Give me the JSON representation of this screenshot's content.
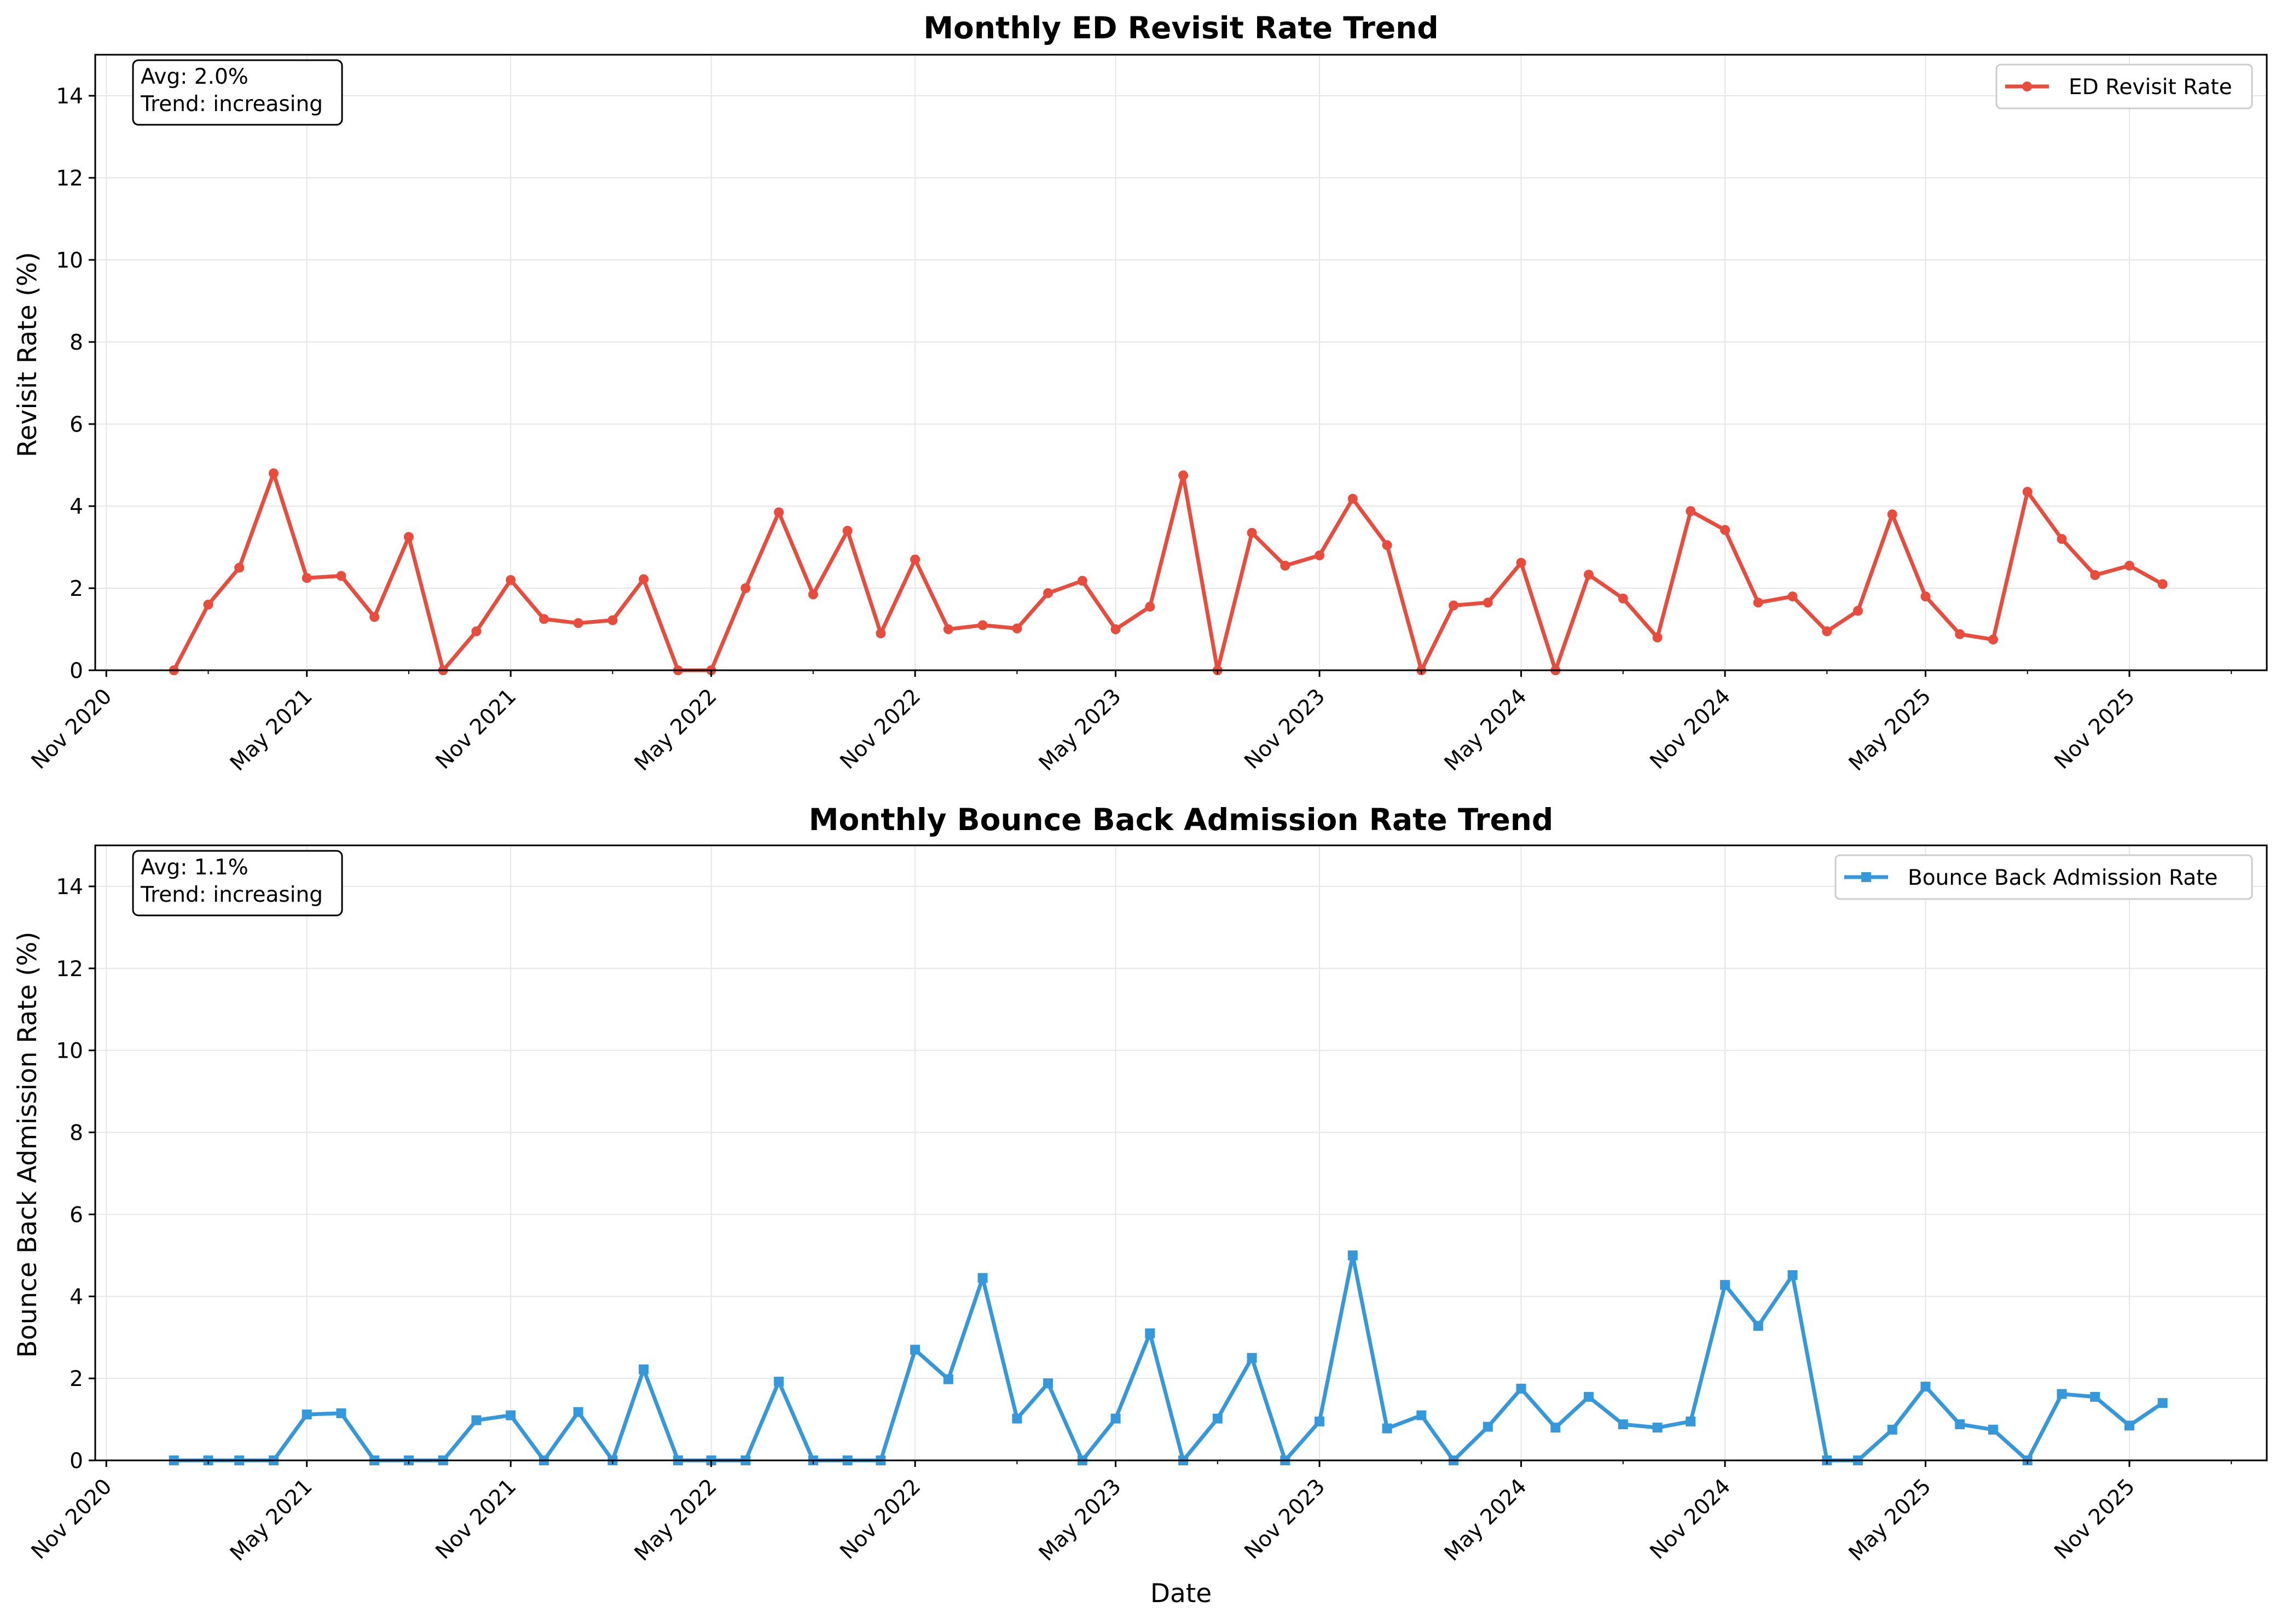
{
  "chart_data": [
    {
      "type": "line",
      "title": "Monthly ED Revisit Rate Trend",
      "xlabel": "",
      "ylabel": "Revisit Rate (%)",
      "ylim": [
        0,
        15
      ],
      "yticks": [
        0,
        2,
        4,
        6,
        8,
        10,
        12,
        14
      ],
      "xlim": [
        "2020-10-22",
        "2026-03-05"
      ],
      "xticks": [
        {
          "date": "2020-11-01",
          "label": "Nov 2020"
        },
        {
          "date": "2021-05-01",
          "label": "May 2021"
        },
        {
          "date": "2021-11-01",
          "label": "Nov 2021"
        },
        {
          "date": "2022-05-01",
          "label": "May 2022"
        },
        {
          "date": "2022-11-01",
          "label": "Nov 2022"
        },
        {
          "date": "2023-05-01",
          "label": "May 2023"
        },
        {
          "date": "2023-11-01",
          "label": "Nov 2023"
        },
        {
          "date": "2024-05-01",
          "label": "May 2024"
        },
        {
          "date": "2024-11-01",
          "label": "Nov 2024"
        },
        {
          "date": "2025-05-01",
          "label": "May 2025"
        },
        {
          "date": "2025-11-01",
          "label": "Nov 2025"
        }
      ],
      "grid": true,
      "legend_position": "top-right",
      "annotation": [
        "Avg: 2.0%",
        "Trend: increasing"
      ],
      "series": [
        {
          "name": "ED Revisit Rate",
          "color": "#e74c3c",
          "marker": "circle",
          "x": [
            "2021-01-01",
            "2021-02-01",
            "2021-03-01",
            "2021-04-01",
            "2021-05-01",
            "2021-06-01",
            "2021-07-01",
            "2021-08-01",
            "2021-09-01",
            "2021-10-01",
            "2021-11-01",
            "2021-12-01",
            "2022-01-01",
            "2022-02-01",
            "2022-03-01",
            "2022-04-01",
            "2022-05-01",
            "2022-06-01",
            "2022-07-01",
            "2022-08-01",
            "2022-09-01",
            "2022-10-01",
            "2022-11-01",
            "2022-12-01",
            "2023-01-01",
            "2023-02-01",
            "2023-03-01",
            "2023-04-01",
            "2023-05-01",
            "2023-06-01",
            "2023-07-01",
            "2023-08-01",
            "2023-09-01",
            "2023-10-01",
            "2023-11-01",
            "2023-12-01",
            "2024-01-01",
            "2024-02-01",
            "2024-03-01",
            "2024-04-01",
            "2024-05-01",
            "2024-06-01",
            "2024-07-01",
            "2024-08-01",
            "2024-09-01",
            "2024-10-01",
            "2024-11-01",
            "2024-12-01",
            "2025-01-01",
            "2025-02-01",
            "2025-03-01",
            "2025-04-01",
            "2025-05-01",
            "2025-06-01",
            "2025-07-01",
            "2025-08-01",
            "2025-09-01",
            "2025-10-01",
            "2025-11-01",
            "2025-12-01"
          ],
          "y": [
            0.0,
            1.6,
            2.5,
            4.8,
            2.25,
            2.3,
            1.3,
            3.25,
            0.0,
            0.95,
            2.2,
            1.25,
            1.15,
            1.22,
            2.22,
            0.0,
            0.0,
            2.0,
            3.85,
            1.85,
            3.4,
            0.9,
            2.7,
            1.0,
            1.1,
            1.02,
            1.88,
            2.18,
            1.0,
            1.55,
            4.75,
            0.0,
            3.35,
            2.55,
            2.8,
            4.18,
            3.05,
            0.0,
            1.58,
            1.65,
            2.62,
            0.0,
            2.33,
            1.75,
            0.8,
            3.88,
            3.42,
            1.65,
            1.8,
            0.95,
            1.45,
            3.8,
            1.8,
            0.88,
            0.75,
            4.35,
            3.2,
            2.32,
            2.55,
            2.1
          ]
        }
      ]
    },
    {
      "type": "line",
      "title": "Monthly Bounce Back Admission Rate Trend",
      "xlabel": "Date",
      "ylabel": "Bounce Back Admission Rate (%)",
      "ylim": [
        0,
        15
      ],
      "yticks": [
        0,
        2,
        4,
        6,
        8,
        10,
        12,
        14
      ],
      "xlim": [
        "2020-10-22",
        "2026-03-05"
      ],
      "xticks": [
        {
          "date": "2020-11-01",
          "label": "Nov 2020"
        },
        {
          "date": "2021-05-01",
          "label": "May 2021"
        },
        {
          "date": "2021-11-01",
          "label": "Nov 2021"
        },
        {
          "date": "2022-05-01",
          "label": "May 2022"
        },
        {
          "date": "2022-11-01",
          "label": "Nov 2022"
        },
        {
          "date": "2023-05-01",
          "label": "May 2023"
        },
        {
          "date": "2023-11-01",
          "label": "Nov 2023"
        },
        {
          "date": "2024-05-01",
          "label": "May 2024"
        },
        {
          "date": "2024-11-01",
          "label": "Nov 2024"
        },
        {
          "date": "2025-05-01",
          "label": "May 2025"
        },
        {
          "date": "2025-11-01",
          "label": "Nov 2025"
        }
      ],
      "grid": true,
      "legend_position": "top-right",
      "annotation": [
        "Avg: 1.1%",
        "Trend: increasing"
      ],
      "series": [
        {
          "name": "Bounce Back Admission Rate",
          "color": "#3498db",
          "marker": "square",
          "x": [
            "2021-01-01",
            "2021-02-01",
            "2021-03-01",
            "2021-04-01",
            "2021-05-01",
            "2021-06-01",
            "2021-07-01",
            "2021-08-01",
            "2021-09-01",
            "2021-10-01",
            "2021-11-01",
            "2021-12-01",
            "2022-01-01",
            "2022-02-01",
            "2022-03-01",
            "2022-04-01",
            "2022-05-01",
            "2022-06-01",
            "2022-07-01",
            "2022-08-01",
            "2022-09-01",
            "2022-10-01",
            "2022-11-01",
            "2022-12-01",
            "2023-01-01",
            "2023-02-01",
            "2023-03-01",
            "2023-04-01",
            "2023-05-01",
            "2023-06-01",
            "2023-07-01",
            "2023-08-01",
            "2023-09-01",
            "2023-10-01",
            "2023-11-01",
            "2023-12-01",
            "2024-01-01",
            "2024-02-01",
            "2024-03-01",
            "2024-04-01",
            "2024-05-01",
            "2024-06-01",
            "2024-07-01",
            "2024-08-01",
            "2024-09-01",
            "2024-10-01",
            "2024-11-01",
            "2024-12-01",
            "2025-01-01",
            "2025-02-01",
            "2025-03-01",
            "2025-04-01",
            "2025-05-01",
            "2025-06-01",
            "2025-07-01",
            "2025-08-01",
            "2025-09-01",
            "2025-10-01",
            "2025-11-01",
            "2025-12-01"
          ],
          "y": [
            0.0,
            0.0,
            0.0,
            0.0,
            1.12,
            1.15,
            0.0,
            0.0,
            0.0,
            0.98,
            1.1,
            0.0,
            1.18,
            0.0,
            2.22,
            0.0,
            0.0,
            0.0,
            1.92,
            0.0,
            0.0,
            0.0,
            2.7,
            1.98,
            4.45,
            1.02,
            1.88,
            0.0,
            1.02,
            3.1,
            0.0,
            1.02,
            2.5,
            0.0,
            0.95,
            5.0,
            0.78,
            1.1,
            0.0,
            0.82,
            1.75,
            0.8,
            1.55,
            0.88,
            0.8,
            0.95,
            4.28,
            3.28,
            4.52,
            0.0,
            0.0,
            0.75,
            1.8,
            0.88,
            0.75,
            0.0,
            1.62,
            1.55,
            0.85,
            1.4
          ]
        }
      ]
    }
  ]
}
